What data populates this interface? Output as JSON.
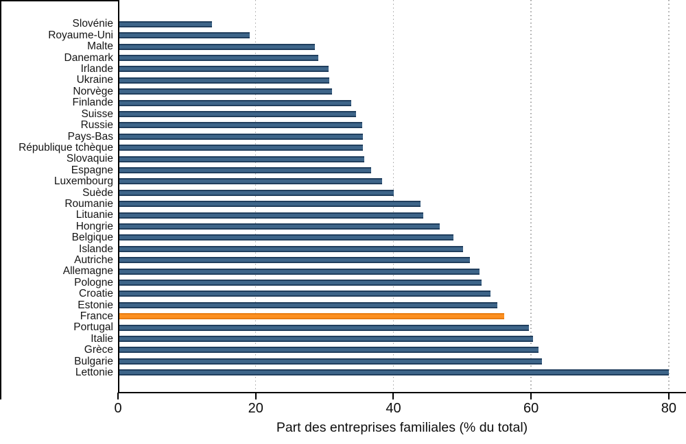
{
  "chart_data": {
    "type": "bar",
    "orientation": "horizontal",
    "title": "",
    "xlabel": "Part des entreprises familiales (% du total)",
    "ylabel": "",
    "xlim": [
      0,
      82.5
    ],
    "xticks": [
      0,
      20,
      40,
      60,
      80
    ],
    "grid": "vertical-dotted-gray",
    "legend": "none",
    "bar_color": "#3e6589",
    "bar_border_color": "#203e5d",
    "highlight_category": "France",
    "highlight_color": "#fd9020",
    "highlight_border_color": "#e87d12",
    "categories": [
      "Slovénie",
      "Royaume-Uni",
      "Malte",
      "Danemark",
      "Irlande",
      "Ukraine",
      "Norvège",
      "Finlande",
      "Suisse",
      "Russie",
      "Pays-Bas",
      "République tchèque",
      "Slovaquie",
      "Espagne",
      "Luxembourg",
      "Suède",
      "Roumanie",
      "Lituanie",
      "Hongrie",
      "Belgique",
      "Islande",
      "Autriche",
      "Allemagne",
      "Pologne",
      "Croatie",
      "Estonie",
      "France",
      "Portugal",
      "Italie",
      "Grèce",
      "Bulgarie",
      "Lettonie"
    ],
    "values": [
      13.5,
      19,
      28.5,
      29,
      30.5,
      30.6,
      31,
      33.8,
      34.5,
      35.4,
      35.5,
      35.5,
      35.7,
      36.7,
      38.3,
      40,
      43.8,
      44.2,
      46.6,
      48.6,
      50,
      51,
      52.4,
      52.7,
      54,
      55,
      56,
      59.6,
      60.2,
      61,
      61.5,
      80
    ]
  }
}
